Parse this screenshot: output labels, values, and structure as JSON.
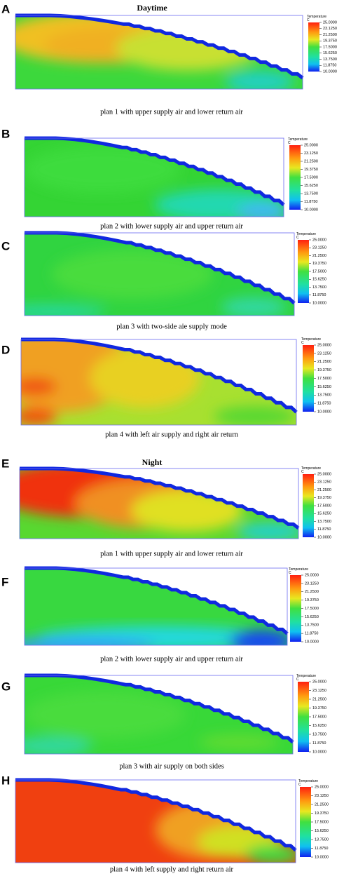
{
  "figure": {
    "panels": [
      {
        "letter": "A",
        "heading": "Daytime",
        "caption": "plan 1 with upper supply air and lower return air"
      },
      {
        "letter": "B",
        "caption": "plan 2 with lower supply air and upper return air"
      },
      {
        "letter": "C",
        "caption": "plan 3 with two-side aie supply mode"
      },
      {
        "letter": "D",
        "caption": "plan 4 with left air supply and right air return"
      },
      {
        "letter": "E",
        "heading": "Night",
        "caption": "plan 1 with upper supply air and lower return air"
      },
      {
        "letter": "F",
        "caption": "plan 2 with lower supply air and upper return air"
      },
      {
        "letter": "G",
        "caption": "plan 3 with air supply on both sides"
      },
      {
        "letter": "H",
        "caption": "plan 4 with left supply and right return air"
      }
    ],
    "legend": {
      "title": "Temperature",
      "unit": "C",
      "labels": [
        "25.0000",
        "23.1250",
        "21.2500",
        "19.3750",
        "17.5000",
        "15.6250",
        "13.7500",
        "11.8750",
        "10.0000"
      ]
    }
  }
}
